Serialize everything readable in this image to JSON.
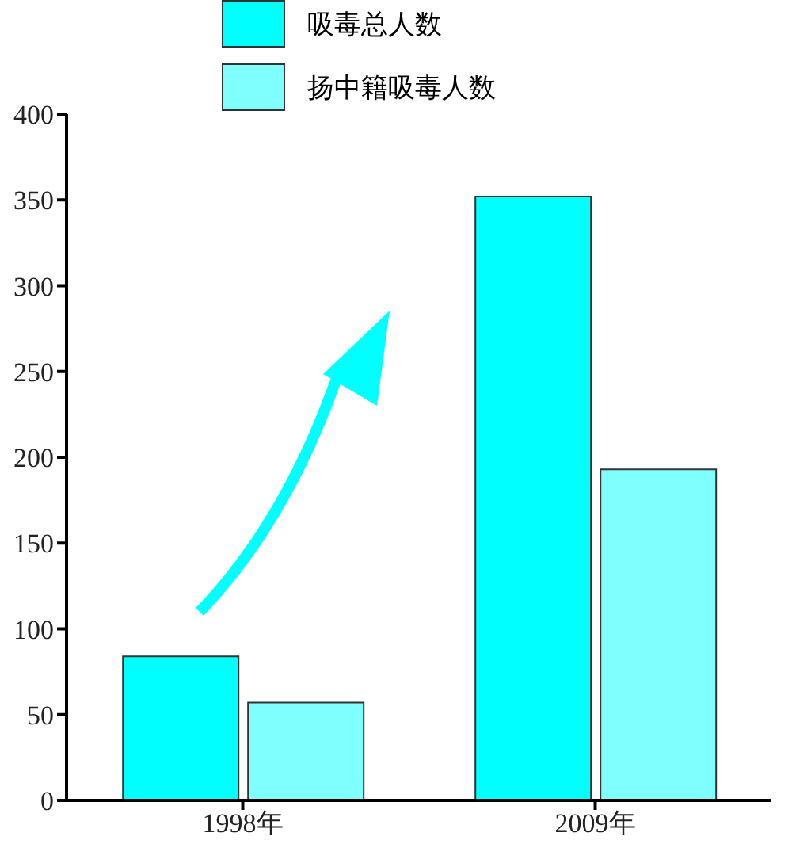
{
  "chart_data": {
    "type": "bar",
    "categories": [
      "1998年",
      "2009年"
    ],
    "series": [
      {
        "name": "吸毒总人数",
        "color": "#00ffff",
        "values": [
          84,
          352
        ]
      },
      {
        "name": "扬中籍吸毒人数",
        "color": "#80ffff",
        "values": [
          57,
          193
        ]
      }
    ],
    "ylim": [
      0,
      400
    ],
    "yticks": [
      0,
      50,
      100,
      150,
      200,
      250,
      300,
      350,
      400
    ],
    "grid": false,
    "legend": "top"
  }
}
